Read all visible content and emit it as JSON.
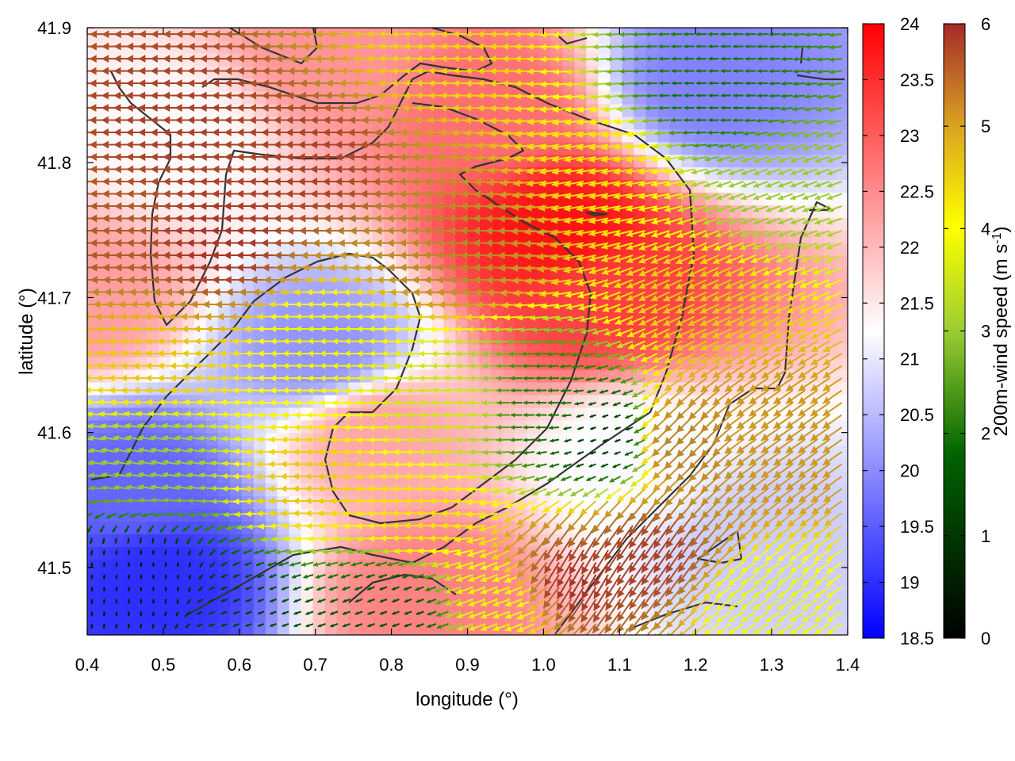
{
  "chart_data": {
    "type": "heatmap",
    "description_kind": "temperature field with overlaid wind vectors and terrain contours",
    "xlabel": "longitude (°)",
    "ylabel": "latitude (°)",
    "xlim": [
      0.4,
      1.4
    ],
    "ylim": [
      41.45,
      41.9
    ],
    "xticks": [
      "0.4",
      "0.5",
      "0.6",
      "0.7",
      "0.8",
      "0.9",
      "1.0",
      "1.1",
      "1.2",
      "1.3",
      "1.4"
    ],
    "yticks": [
      "41.5",
      "41.6",
      "41.7",
      "41.8",
      "41.9"
    ],
    "temperature_colorbar": {
      "range": [
        18.5,
        24
      ],
      "ticks": [
        "24",
        "23.5",
        "23",
        "22.5",
        "22",
        "21.5",
        "21",
        "20.5",
        "20",
        "19.5",
        "19",
        "18.5"
      ],
      "colors": [
        "#0000ff",
        "#ffffff",
        "#ff0000"
      ]
    },
    "wind_colorbar": {
      "title": "200m-wind speed (m s",
      "title_sup": "-1",
      "title_end": ")",
      "range": [
        0,
        6
      ],
      "ticks": [
        "6",
        "5",
        "4",
        "3",
        "2",
        "1",
        "0"
      ],
      "colors": [
        "#000000",
        "#006400",
        "#9acd32",
        "#ffff00",
        "#daa520",
        "#a52a2a"
      ]
    },
    "temperature_features": [
      {
        "lon": 0.52,
        "lat": 41.82,
        "value": 21.3
      },
      {
        "lon": 0.72,
        "lat": 41.88,
        "value": 22.4
      },
      {
        "lon": 0.93,
        "lat": 41.84,
        "value": 22.8
      },
      {
        "lon": 1.02,
        "lat": 41.75,
        "value": 23.8
      },
      {
        "lon": 1.07,
        "lat": 41.7,
        "value": 23.3
      },
      {
        "lon": 0.78,
        "lat": 41.6,
        "value": 22.2
      },
      {
        "lon": 0.85,
        "lat": 41.48,
        "value": 22.6
      },
      {
        "lon": 0.49,
        "lat": 41.49,
        "value": 19.0
      },
      {
        "lon": 0.46,
        "lat": 41.56,
        "value": 19.6
      },
      {
        "lon": 0.71,
        "lat": 41.66,
        "value": 20.1
      },
      {
        "lon": 1.22,
        "lat": 41.86,
        "value": 19.9
      },
      {
        "lon": 0.4,
        "lat": 41.7,
        "value": 22.3
      },
      {
        "lon": 1.12,
        "lat": 41.58,
        "value": 21.2
      },
      {
        "lon": 1.28,
        "lat": 41.52,
        "value": 20.7
      }
    ],
    "wind_regions": [
      {
        "region": "north-west band",
        "speed_m_s": 5.8,
        "direction": "from east"
      },
      {
        "region": "central west",
        "speed_m_s": 5.6,
        "direction": "from east"
      },
      {
        "region": "south-east",
        "speed_m_s": 5.7,
        "direction": "from north-west"
      },
      {
        "region": "central",
        "speed_m_s": 2.4,
        "direction": "from east"
      },
      {
        "region": "south-west corner",
        "speed_m_s": 0.3,
        "direction": "calm"
      },
      {
        "region": "north-east",
        "speed_m_s": 1.8,
        "direction": "from east"
      },
      {
        "region": "south-central",
        "speed_m_s": 3.8,
        "direction": "from east"
      }
    ]
  }
}
